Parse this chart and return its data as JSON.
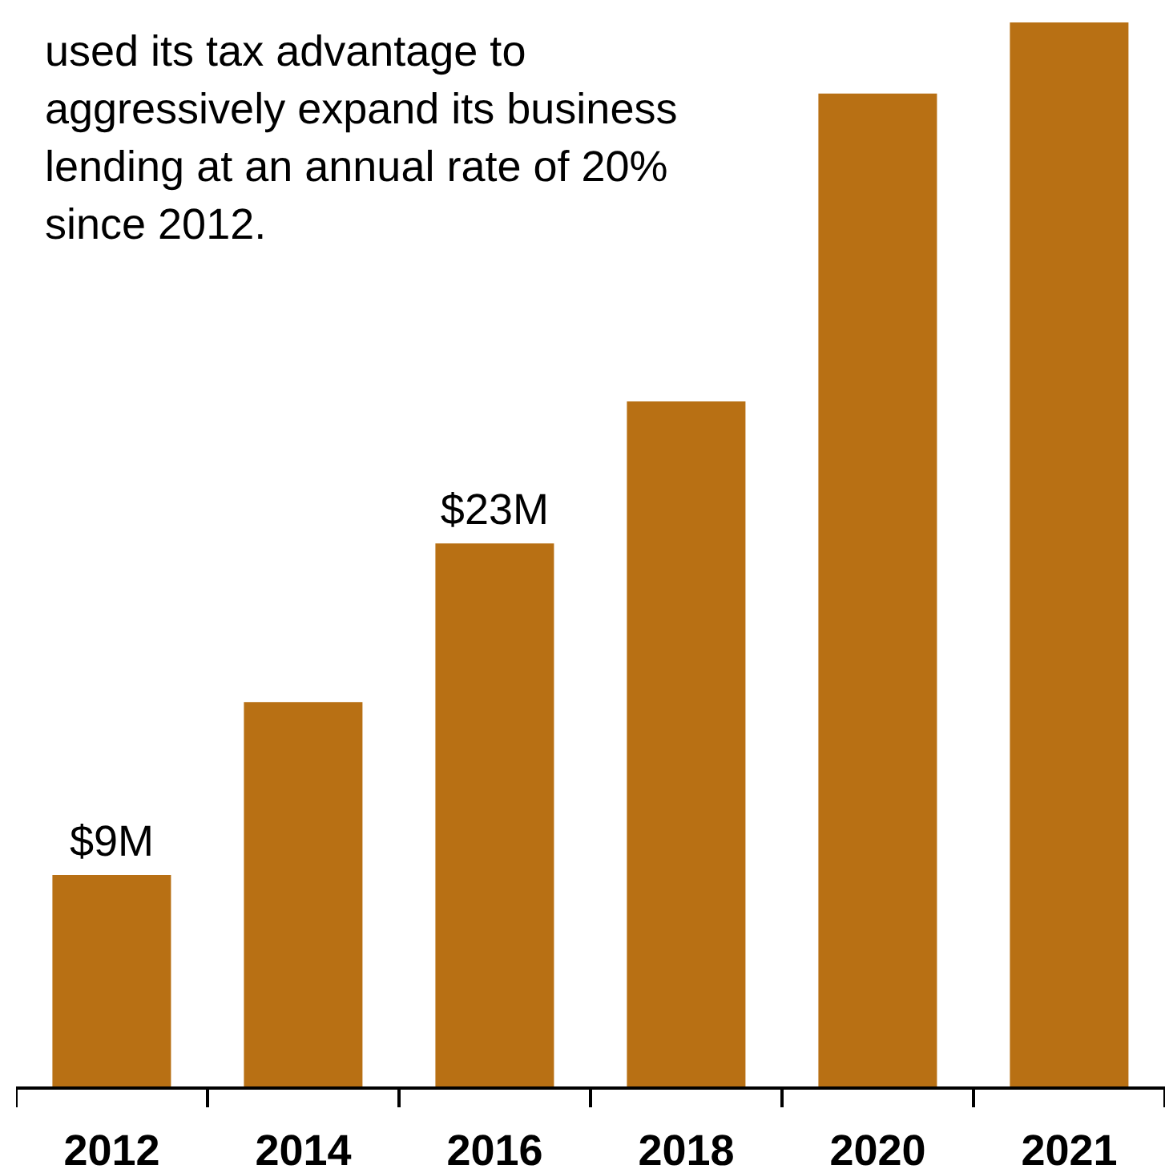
{
  "chart_data": {
    "type": "bar",
    "categories": [
      "2012",
      "2014",
      "2016",
      "2018",
      "2020",
      "2021"
    ],
    "values": [
      9,
      16.3,
      23,
      29,
      42,
      45
    ],
    "color": "#b87014",
    "value_labels": [
      "$9M",
      null,
      "$23M",
      null,
      null,
      null
    ],
    "annotations": [
      "used its tax advantage to aggressively expand its business lending at an annual rate of 20% since 2012."
    ],
    "grid": false,
    "legend": false
  }
}
